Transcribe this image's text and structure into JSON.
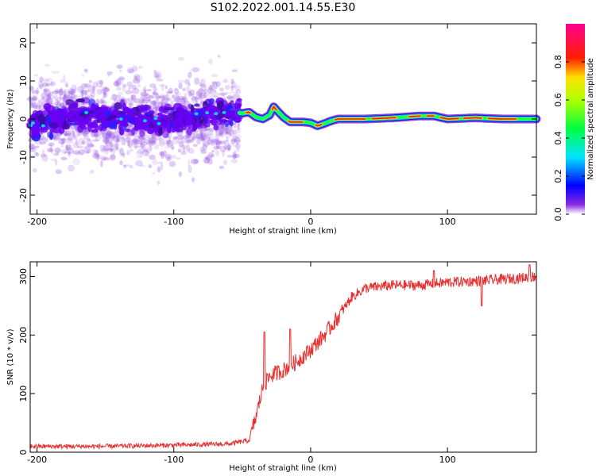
{
  "title": "S102.2022.001.14.55.E30",
  "chart_data": [
    {
      "type": "heatmap",
      "xlabel": "Height of straight line (km)",
      "ylabel": "Frequency (Hz)",
      "xlim": [
        -205,
        165
      ],
      "ylim": [
        -25,
        25
      ],
      "x_ticks": [
        -200,
        -100,
        0,
        100
      ],
      "y_ticks": [
        -20,
        -10,
        0,
        10,
        20
      ],
      "colorbar": {
        "label": "Normalized spectral amplitude",
        "range": [
          0,
          1
        ],
        "ticks": [
          0.0,
          0.2,
          0.4,
          0.6,
          0.8
        ]
      },
      "ridge": [
        {
          "x": -200,
          "y": -1.5
        },
        {
          "x": -170,
          "y": 1.0
        },
        {
          "x": -140,
          "y": 0.5
        },
        {
          "x": -110,
          "y": -1.0
        },
        {
          "x": -80,
          "y": 1.0
        },
        {
          "x": -60,
          "y": 2.0
        },
        {
          "x": -50,
          "y": 1.5
        },
        {
          "x": -45,
          "y": 1.8
        },
        {
          "x": -40,
          "y": 0.5
        },
        {
          "x": -35,
          "y": 0.0
        },
        {
          "x": -30,
          "y": 1.0
        },
        {
          "x": -27,
          "y": 3.2
        },
        {
          "x": -24,
          "y": 2.0
        },
        {
          "x": -20,
          "y": 0.5
        },
        {
          "x": -15,
          "y": -0.8
        },
        {
          "x": -10,
          "y": -0.8
        },
        {
          "x": -5,
          "y": -0.8
        },
        {
          "x": 0,
          "y": -1.0
        },
        {
          "x": 5,
          "y": -1.8
        },
        {
          "x": 10,
          "y": -1.2
        },
        {
          "x": 15,
          "y": -0.5
        },
        {
          "x": 20,
          "y": 0.0
        },
        {
          "x": 40,
          "y": 0.0
        },
        {
          "x": 60,
          "y": 0.3
        },
        {
          "x": 80,
          "y": 0.8
        },
        {
          "x": 90,
          "y": 0.8
        },
        {
          "x": 100,
          "y": 0.0
        },
        {
          "x": 120,
          "y": 0.3
        },
        {
          "x": 140,
          "y": 0.0
        },
        {
          "x": 165,
          "y": 0.0
        }
      ]
    },
    {
      "type": "line",
      "xlabel": "Height of straight line (km)",
      "ylabel": "SNR (10 * v/v)",
      "xlim": [
        -205,
        165
      ],
      "ylim": [
        0,
        325
      ],
      "x_ticks": [
        -200,
        -100,
        0,
        100
      ],
      "y_ticks": [
        0,
        100,
        200,
        300
      ],
      "color": "#e83030",
      "series_trend": [
        {
          "x": -205,
          "y": 10
        },
        {
          "x": -150,
          "y": 10
        },
        {
          "x": -100,
          "y": 12
        },
        {
          "x": -60,
          "y": 14
        },
        {
          "x": -45,
          "y": 20
        },
        {
          "x": -40,
          "y": 60
        },
        {
          "x": -35,
          "y": 110
        },
        {
          "x": -30,
          "y": 130
        },
        {
          "x": -20,
          "y": 140
        },
        {
          "x": -10,
          "y": 155
        },
        {
          "x": 0,
          "y": 175
        },
        {
          "x": 10,
          "y": 200
        },
        {
          "x": 20,
          "y": 230
        },
        {
          "x": 30,
          "y": 265
        },
        {
          "x": 40,
          "y": 280
        },
        {
          "x": 60,
          "y": 285
        },
        {
          "x": 80,
          "y": 285
        },
        {
          "x": 100,
          "y": 290
        },
        {
          "x": 120,
          "y": 292
        },
        {
          "x": 140,
          "y": 295
        },
        {
          "x": 165,
          "y": 300
        }
      ],
      "spikes": [
        {
          "x": -34,
          "y": 205
        },
        {
          "x": -15,
          "y": 210
        },
        {
          "x": 90,
          "y": 310
        },
        {
          "x": 160,
          "y": 320
        },
        {
          "x": 125,
          "y": 250
        }
      ]
    }
  ]
}
